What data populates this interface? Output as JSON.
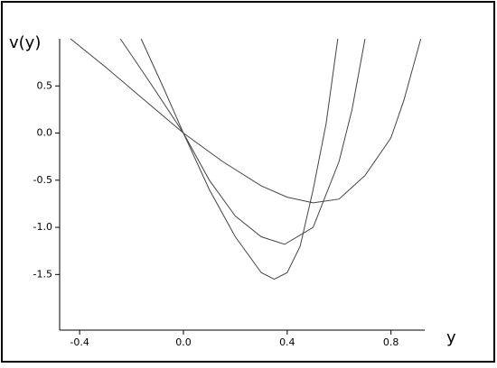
{
  "chart_data": {
    "type": "line",
    "xlabel": "y",
    "ylabel": "v(y)",
    "xlim": [
      -0.477,
      0.93
    ],
    "ylim": [
      -2.09,
      1.0
    ],
    "xticks": [
      -0.4,
      {
        "value": 0,
        "label": "0.0"
      },
      0.4,
      0.8
    ],
    "yticks": [
      0.5,
      {
        "value": 0,
        "label": "0.0"
      },
      -0.5,
      {
        "value": -1,
        "label": "-1.0"
      },
      -1.5
    ],
    "series": [
      {
        "color": "#444444",
        "x": [
          -0.435,
          -0.3,
          -0.15,
          0,
          0.15,
          0.3,
          0.4,
          0.5,
          0.6,
          0.7,
          0.8,
          0.85,
          0.915
        ],
        "values": [
          1.0,
          0.7,
          0.35,
          0,
          -0.3,
          -0.56,
          -0.68,
          -0.74,
          -0.7,
          -0.45,
          -0.05,
          0.35,
          1.0
        ]
      },
      {
        "color": "#444444",
        "x": [
          -0.243,
          -0.12,
          0,
          0.1,
          0.2,
          0.3,
          0.39,
          0.5,
          0.6,
          0.65,
          0.7
        ],
        "values": [
          1.0,
          0.5,
          0,
          -0.5,
          -0.88,
          -1.1,
          -1.18,
          -1.0,
          -0.3,
          0.25,
          1.0
        ]
      },
      {
        "color": "#444444",
        "x": [
          -0.163,
          -0.08,
          0,
          0.1,
          0.2,
          0.3,
          0.35,
          0.4,
          0.45,
          0.5,
          0.55,
          0.595
        ],
        "values": [
          1.0,
          0.5,
          0,
          -0.6,
          -1.1,
          -1.48,
          -1.55,
          -1.48,
          -1.2,
          -0.6,
          0.1,
          1.0
        ]
      }
    ]
  }
}
